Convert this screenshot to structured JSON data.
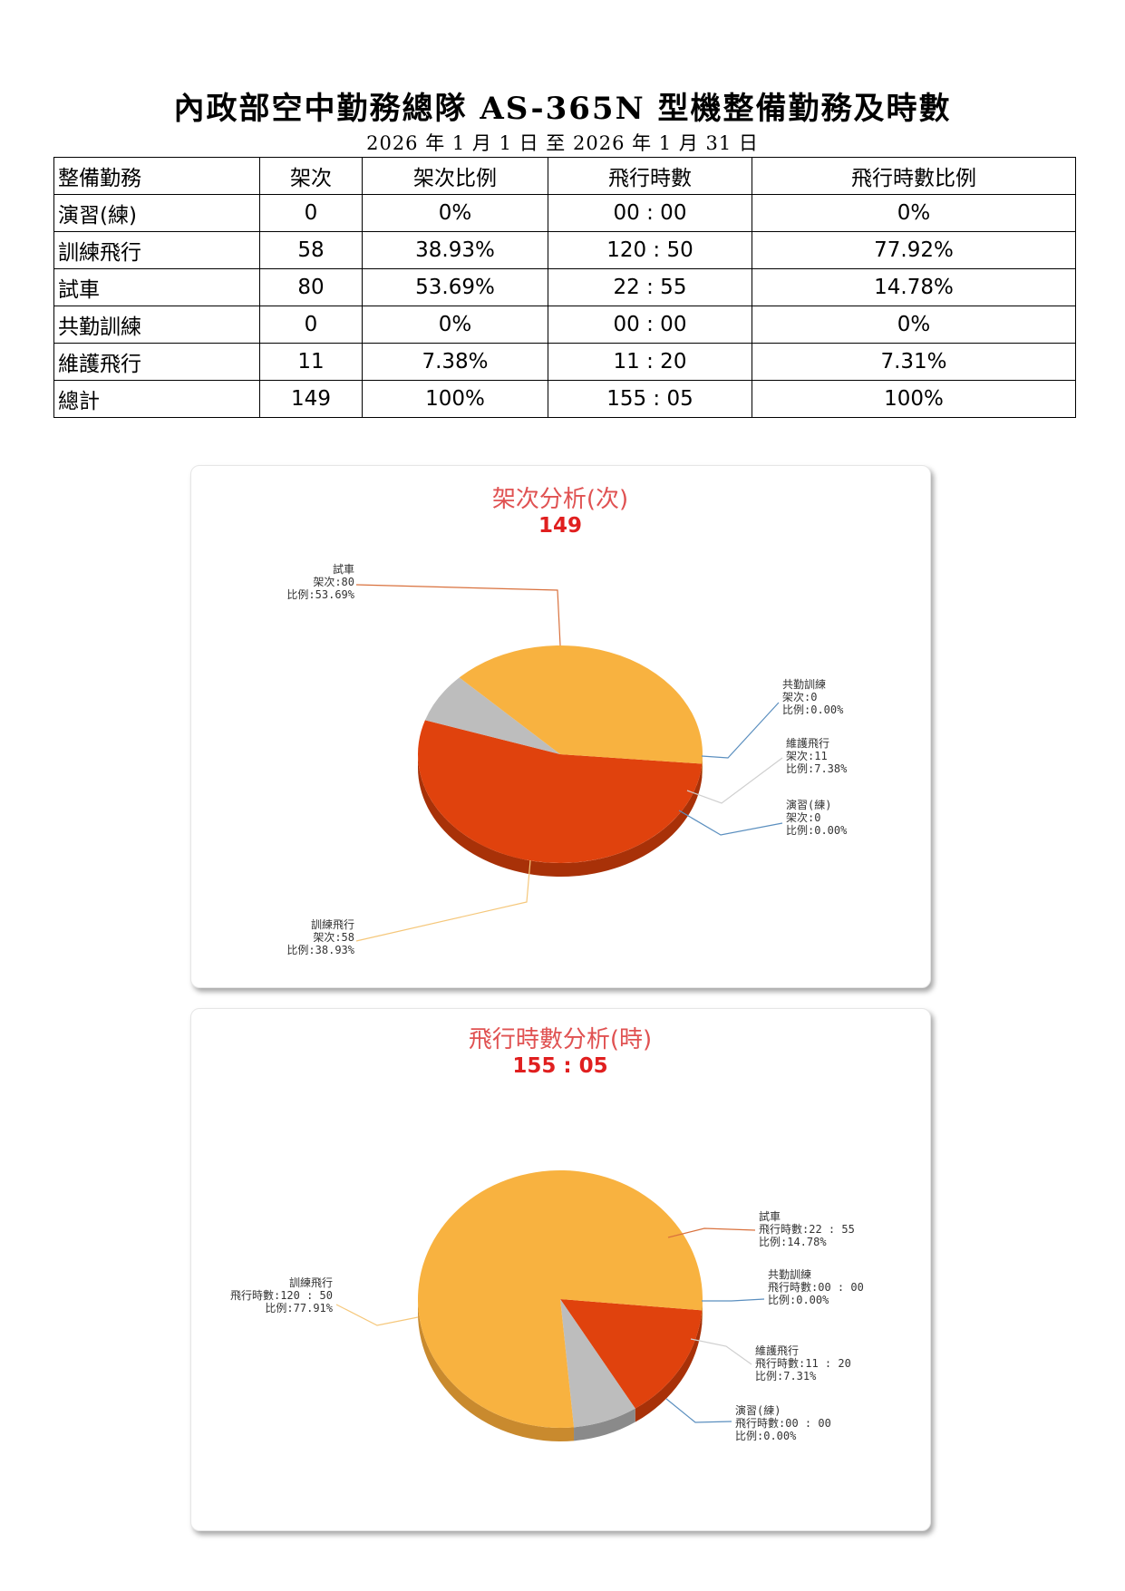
{
  "header": {
    "title": "內政部空中勤務總隊 AS-365N 型機整備勤務及時數",
    "date_range": "2026 年 1 月 1 日  至  2026 年 1 月 31 日"
  },
  "table": {
    "headers": [
      "整備勤務",
      "架次",
      "架次比例",
      "飛行時數",
      "飛行時數比例"
    ],
    "rows": [
      [
        "演習(練)",
        "0",
        "0%",
        "00 : 00",
        "0%"
      ],
      [
        "訓練飛行",
        "58",
        "38.93%",
        "120 : 50",
        "77.92%"
      ],
      [
        "試車",
        "80",
        "53.69%",
        "22 : 55",
        "14.78%"
      ],
      [
        "共勤訓練",
        "0",
        "0%",
        "00 : 00",
        "0%"
      ],
      [
        "維護飛行",
        "11",
        "7.38%",
        "11 : 20",
        "7.31%"
      ],
      [
        "總計",
        "149",
        "100%",
        "155 : 05",
        "100%"
      ]
    ]
  },
  "colors": {
    "試車": "#e0420d",
    "訓練飛行": "#f8b240",
    "維護飛行": "#bdbdbd",
    "試車_side": "#a83108",
    "訓練飛行_side": "#c98a2e",
    "維護飛行_side": "#8a8a8a",
    "title": "#e05252",
    "total": "#e01f1f"
  },
  "chart_data": [
    {
      "type": "pie",
      "title": "架次分析(次)",
      "total": "149",
      "slices": [
        {
          "name": "試車",
          "value": 80,
          "lines": [
            "試車",
            "架次:80",
            "比例:53.69%"
          ],
          "line_color": "#d9713d"
        },
        {
          "name": "共勤訓練",
          "value": 0,
          "lines": [
            "共勤訓練",
            "架次:0",
            "比例:0.00%"
          ],
          "line_color": "#5b8fbf"
        },
        {
          "name": "維護飛行",
          "value": 11,
          "lines": [
            "維護飛行",
            "架次:11",
            "比例:7.38%"
          ],
          "line_color": "#cfcfcf"
        },
        {
          "name": "演習(練)",
          "value": 0,
          "lines": [
            "演習(練)",
            "架次:0",
            "比例:0.00%"
          ],
          "line_color": "#5b8fbf"
        },
        {
          "name": "訓練飛行",
          "value": 58,
          "lines": [
            "訓練飛行",
            "架次:58",
            "比例:38.93%"
          ],
          "line_color": "#f5c77a"
        }
      ]
    },
    {
      "type": "pie",
      "title": "飛行時數分析(時)",
      "total": "155 : 05",
      "slices": [
        {
          "name": "試車",
          "value": 22.917,
          "lines": [
            "試車",
            "飛行時數:22 : 55",
            "比例:14.78%"
          ],
          "line_color": "#d9713d"
        },
        {
          "name": "共勤訓練",
          "value": 0,
          "lines": [
            "共勤訓練",
            "飛行時數:00 : 00",
            "比例:0.00%"
          ],
          "line_color": "#5b8fbf"
        },
        {
          "name": "維護飛行",
          "value": 11.333,
          "lines": [
            "維護飛行",
            "飛行時數:11 : 20",
            "比例:7.31%"
          ],
          "line_color": "#cfcfcf"
        },
        {
          "name": "演習(練)",
          "value": 0,
          "lines": [
            "演習(練)",
            "飛行時數:00 : 00",
            "比例:0.00%"
          ],
          "line_color": "#5b8fbf"
        },
        {
          "name": "訓練飛行",
          "value": 120.833,
          "lines": [
            "訓練飛行",
            "飛行時數:120 : 50",
            "比例:77.91%"
          ],
          "line_color": "#f5c77a"
        }
      ]
    }
  ]
}
